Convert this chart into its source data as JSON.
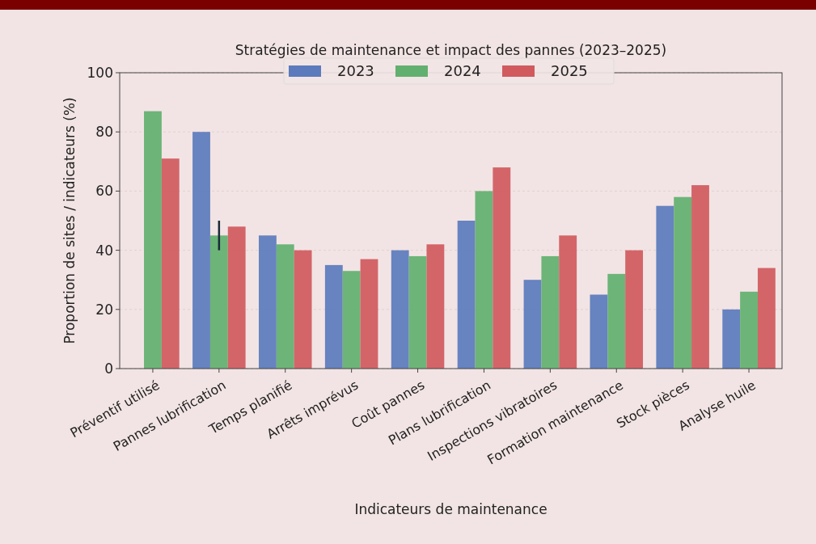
{
  "chart_data": {
    "type": "bar",
    "title": "Stratégies de maintenance et impact des pannes (2023–2025)",
    "xlabel": "Indicateurs de maintenance",
    "ylabel": "Proportion de sites / indicateurs (%)",
    "categories": [
      "Préventif utilisé",
      "Pannes lubrification",
      "Temps planifié",
      "Arrêts imprévus",
      "Coût pannes",
      "Plans lubrification",
      "Inspections vibratoires",
      "Formation maintenance",
      "Stock pièces",
      "Analyse huile"
    ],
    "series": [
      {
        "name": "2023",
        "color": "#5b7bbd",
        "values": [
          null,
          80,
          45,
          35,
          40,
          50,
          30,
          25,
          55,
          20
        ]
      },
      {
        "name": "2024",
        "color": "#62b06f",
        "values": [
          87,
          45,
          42,
          33,
          38,
          60,
          38,
          32,
          58,
          26
        ],
        "errors": [
          null,
          5,
          null,
          null,
          null,
          null,
          null,
          null,
          null,
          null
        ]
      },
      {
        "name": "2025",
        "color": "#d05a5e",
        "values": [
          71,
          48,
          40,
          37,
          42,
          68,
          45,
          40,
          62,
          34
        ]
      }
    ],
    "ylim": [
      0,
      100
    ],
    "yticks": [
      0,
      20,
      40,
      60,
      80,
      100
    ],
    "grid": "y",
    "legend": "top"
  }
}
